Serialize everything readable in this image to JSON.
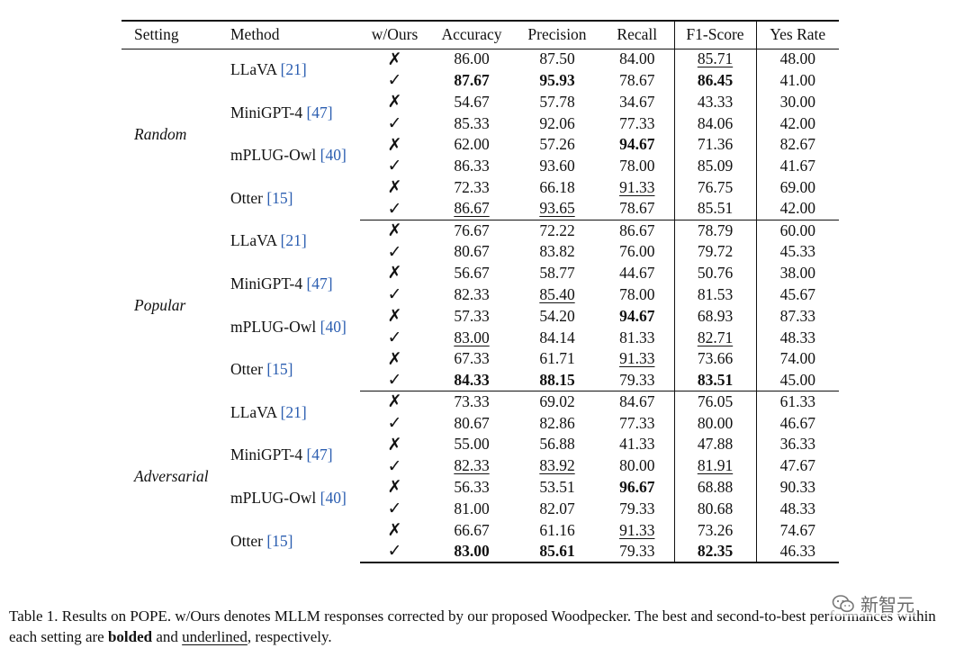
{
  "table": {
    "headers": [
      "Setting",
      "Method",
      "w/Ours",
      "Accuracy",
      "Precision",
      "Recall",
      "F1-Score",
      "Yes Rate"
    ],
    "marks": {
      "no": "✗",
      "yes": "✓"
    },
    "groups": [
      {
        "setting": "Random",
        "methods": [
          {
            "name": "LLaVA",
            "ref": "[21]",
            "rows": [
              {
                "ours": false,
                "vals": [
                  "86.00",
                  "87.50",
                  "84.00",
                  "85.71",
                  "48.00"
                ],
                "bold": [],
                "underline": [
                  3
                ]
              },
              {
                "ours": true,
                "vals": [
                  "87.67",
                  "95.93",
                  "78.67",
                  "86.45",
                  "41.00"
                ],
                "bold": [
                  0,
                  1,
                  3
                ],
                "underline": []
              }
            ]
          },
          {
            "name": "MiniGPT-4",
            "ref": "[47]",
            "rows": [
              {
                "ours": false,
                "vals": [
                  "54.67",
                  "57.78",
                  "34.67",
                  "43.33",
                  "30.00"
                ],
                "bold": [],
                "underline": []
              },
              {
                "ours": true,
                "vals": [
                  "85.33",
                  "92.06",
                  "77.33",
                  "84.06",
                  "42.00"
                ],
                "bold": [],
                "underline": []
              }
            ]
          },
          {
            "name": "mPLUG-Owl",
            "ref": "[40]",
            "rows": [
              {
                "ours": false,
                "vals": [
                  "62.00",
                  "57.26",
                  "94.67",
                  "71.36",
                  "82.67"
                ],
                "bold": [
                  2
                ],
                "underline": []
              },
              {
                "ours": true,
                "vals": [
                  "86.33",
                  "93.60",
                  "78.00",
                  "85.09",
                  "41.67"
                ],
                "bold": [],
                "underline": []
              }
            ]
          },
          {
            "name": "Otter",
            "ref": "[15]",
            "rows": [
              {
                "ours": false,
                "vals": [
                  "72.33",
                  "66.18",
                  "91.33",
                  "76.75",
                  "69.00"
                ],
                "bold": [],
                "underline": [
                  2
                ]
              },
              {
                "ours": true,
                "vals": [
                  "86.67",
                  "93.65",
                  "78.67",
                  "85.51",
                  "42.00"
                ],
                "bold": [],
                "underline": [
                  0,
                  1
                ]
              }
            ]
          }
        ]
      },
      {
        "setting": "Popular",
        "methods": [
          {
            "name": "LLaVA",
            "ref": "[21]",
            "rows": [
              {
                "ours": false,
                "vals": [
                  "76.67",
                  "72.22",
                  "86.67",
                  "78.79",
                  "60.00"
                ],
                "bold": [],
                "underline": []
              },
              {
                "ours": true,
                "vals": [
                  "80.67",
                  "83.82",
                  "76.00",
                  "79.72",
                  "45.33"
                ],
                "bold": [],
                "underline": []
              }
            ]
          },
          {
            "name": "MiniGPT-4",
            "ref": "[47]",
            "rows": [
              {
                "ours": false,
                "vals": [
                  "56.67",
                  "58.77",
                  "44.67",
                  "50.76",
                  "38.00"
                ],
                "bold": [],
                "underline": []
              },
              {
                "ours": true,
                "vals": [
                  "82.33",
                  "85.40",
                  "78.00",
                  "81.53",
                  "45.67"
                ],
                "bold": [],
                "underline": [
                  1
                ]
              }
            ]
          },
          {
            "name": "mPLUG-Owl",
            "ref": "[40]",
            "rows": [
              {
                "ours": false,
                "vals": [
                  "57.33",
                  "54.20",
                  "94.67",
                  "68.93",
                  "87.33"
                ],
                "bold": [
                  2
                ],
                "underline": []
              },
              {
                "ours": true,
                "vals": [
                  "83.00",
                  "84.14",
                  "81.33",
                  "82.71",
                  "48.33"
                ],
                "bold": [],
                "underline": [
                  0,
                  3
                ]
              }
            ]
          },
          {
            "name": "Otter",
            "ref": "[15]",
            "rows": [
              {
                "ours": false,
                "vals": [
                  "67.33",
                  "61.71",
                  "91.33",
                  "73.66",
                  "74.00"
                ],
                "bold": [],
                "underline": [
                  2
                ]
              },
              {
                "ours": true,
                "vals": [
                  "84.33",
                  "88.15",
                  "79.33",
                  "83.51",
                  "45.00"
                ],
                "bold": [
                  0,
                  1,
                  3
                ],
                "underline": []
              }
            ]
          }
        ]
      },
      {
        "setting": "Adversarial",
        "methods": [
          {
            "name": "LLaVA",
            "ref": "[21]",
            "rows": [
              {
                "ours": false,
                "vals": [
                  "73.33",
                  "69.02",
                  "84.67",
                  "76.05",
                  "61.33"
                ],
                "bold": [],
                "underline": []
              },
              {
                "ours": true,
                "vals": [
                  "80.67",
                  "82.86",
                  "77.33",
                  "80.00",
                  "46.67"
                ],
                "bold": [],
                "underline": []
              }
            ]
          },
          {
            "name": "MiniGPT-4",
            "ref": "[47]",
            "rows": [
              {
                "ours": false,
                "vals": [
                  "55.00",
                  "56.88",
                  "41.33",
                  "47.88",
                  "36.33"
                ],
                "bold": [],
                "underline": []
              },
              {
                "ours": true,
                "vals": [
                  "82.33",
                  "83.92",
                  "80.00",
                  "81.91",
                  "47.67"
                ],
                "bold": [],
                "underline": [
                  0,
                  1,
                  3
                ]
              }
            ]
          },
          {
            "name": "mPLUG-Owl",
            "ref": "[40]",
            "rows": [
              {
                "ours": false,
                "vals": [
                  "56.33",
                  "53.51",
                  "96.67",
                  "68.88",
                  "90.33"
                ],
                "bold": [
                  2
                ],
                "underline": []
              },
              {
                "ours": true,
                "vals": [
                  "81.00",
                  "82.07",
                  "79.33",
                  "80.68",
                  "48.33"
                ],
                "bold": [],
                "underline": []
              }
            ]
          },
          {
            "name": "Otter",
            "ref": "[15]",
            "rows": [
              {
                "ours": false,
                "vals": [
                  "66.67",
                  "61.16",
                  "91.33",
                  "73.26",
                  "74.67"
                ],
                "bold": [],
                "underline": [
                  2
                ]
              },
              {
                "ours": true,
                "vals": [
                  "83.00",
                  "85.61",
                  "79.33",
                  "82.35",
                  "46.33"
                ],
                "bold": [
                  0,
                  1,
                  3
                ],
                "underline": []
              }
            ]
          }
        ]
      }
    ]
  },
  "caption": {
    "part1": "Table 1. Results on POPE. w/Ours denotes MLLM responses corrected by our proposed Woodpecker. The best and second-to-best performances within each setting are ",
    "bolded": "bolded",
    "and": " and ",
    "underlined": "underlined",
    "end": ", respectively."
  },
  "watermark": {
    "text": "新智元",
    "icon": "wechat-logo-icon"
  }
}
